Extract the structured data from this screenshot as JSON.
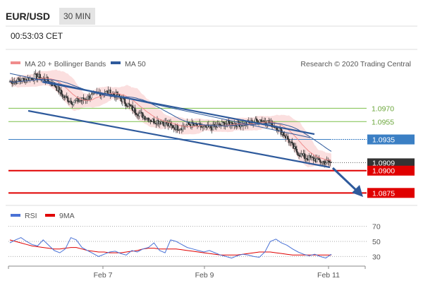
{
  "header": {
    "symbol": "EUR/USD",
    "timeframe": "30 MIN",
    "time": "00:53:03 CET"
  },
  "legend": {
    "ma20": "MA 20 + Bollinger Bands",
    "ma50": "MA 50",
    "credit": "Research © 2020 Trading Central",
    "rsi": "RSI",
    "ma9": "9MA"
  },
  "colors": {
    "ma20": "#f08c8c",
    "ma50": "#2e5a9c",
    "trend": "#2e5a9c",
    "support": "#e00000",
    "resistance": "#7cc04a",
    "pivot": "#3b7fc4",
    "current": "#333333",
    "rsi": "#4a72d6",
    "ma9": "#e00000"
  },
  "chart_data": [
    {
      "type": "candlestick",
      "x_tick_labels": [
        "Feb 7",
        "Feb 9",
        "Feb 11"
      ],
      "price_levels": [
        {
          "label": "1.0970",
          "value": 1.097,
          "kind": "resistance"
        },
        {
          "label": "1.0955",
          "value": 1.0955,
          "kind": "resistance"
        },
        {
          "label": "1.0935",
          "value": 1.0935,
          "kind": "pivot"
        },
        {
          "label": "1.0909",
          "value": 1.0909,
          "kind": "last"
        },
        {
          "label": "1.0900",
          "value": 1.09,
          "kind": "support"
        },
        {
          "label": "1.0875",
          "value": 1.0875,
          "kind": "support"
        }
      ],
      "ylim": [
        1.0861,
        1.1036
      ],
      "close_series": [
        1.1,
        1.1001,
        1.1003,
        1.1006,
        1.1002,
        1.0996,
        1.0983,
        1.0977,
        1.0979,
        1.0983,
        1.0987,
        1.0988,
        1.0984,
        1.0976,
        1.0967,
        1.0961,
        1.0956,
        1.0955,
        1.095,
        1.0948,
        1.0952,
        1.095,
        1.0948,
        1.0949,
        1.0953,
        1.0953,
        1.0952,
        1.0954,
        1.0957,
        1.0954,
        1.0948,
        1.0937,
        1.0922,
        1.0915,
        1.0913,
        1.091,
        1.0909
      ],
      "trend_channel": {
        "upper": [
          [
            0,
            1.1005
          ],
          [
            36,
            1.095
          ]
        ],
        "lower": [
          [
            0,
            1.0978
          ],
          [
            36,
            1.0911
          ]
        ]
      },
      "projection": {
        "from": 1.0909,
        "to": 1.0875
      }
    },
    {
      "type": "line",
      "title": "RSI",
      "levels": [
        70,
        50,
        30
      ],
      "ylim": [
        22,
        78
      ],
      "series": [
        {
          "name": "RSI",
          "values": [
            48,
            52,
            55,
            50,
            46,
            44,
            52,
            45,
            38,
            35,
            40,
            55,
            52,
            42,
            38,
            34,
            30,
            33,
            36,
            37,
            34,
            32,
            38,
            36,
            40,
            42,
            48,
            38,
            35,
            52,
            50,
            46,
            42,
            40,
            38,
            36,
            38,
            35,
            32,
            30,
            28,
            31,
            33,
            32,
            30,
            29,
            36,
            50,
            53,
            48,
            45,
            40,
            36,
            33,
            31,
            33,
            30,
            28,
            33
          ]
        },
        {
          "name": "9MA",
          "values": [
            52,
            50,
            48,
            46,
            44,
            43,
            42,
            41,
            40,
            40,
            41,
            42,
            42,
            40,
            38,
            37,
            36,
            36,
            35,
            35,
            35,
            36,
            37,
            38,
            40,
            41,
            41,
            40,
            40,
            40,
            40,
            39,
            38,
            37,
            36,
            35,
            34,
            33,
            32,
            32,
            32,
            32,
            33,
            34,
            35,
            36,
            36,
            36,
            35,
            34,
            33,
            32,
            32,
            32,
            32,
            32,
            32,
            32,
            32
          ]
        }
      ]
    }
  ]
}
